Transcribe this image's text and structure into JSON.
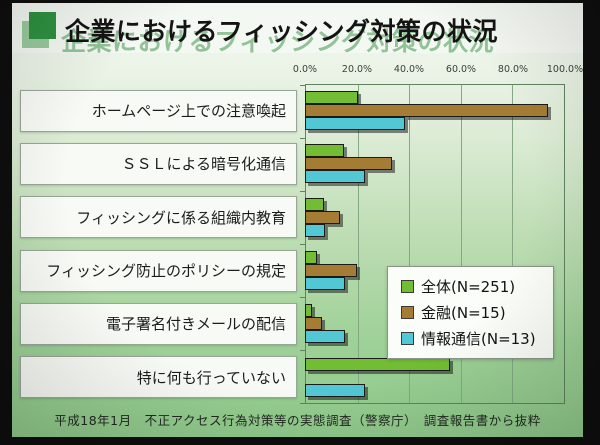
{
  "slide": {
    "title": "企業におけるフィッシング対策の状況",
    "source_note": "平成18年1月　不正アクセス行為対策等の実態調査（警察庁）　調査報告書から抜粋"
  },
  "chart_data": {
    "type": "bar",
    "orientation": "horizontal",
    "title": "企業におけるフィッシング対策の状況",
    "categories": [
      "ホームページ上での注意喚起",
      "ＳＳＬによる暗号化通信",
      "フィッシングに係る組織内教育",
      "フィッシング防止のポリシーの規定",
      "電子署名付きメールの配信",
      "特に何も行っていない"
    ],
    "series": [
      {
        "key": "overall",
        "name": "全体(N=251)",
        "color": "#72bd33",
        "values": [
          20.3,
          14.9,
          7.2,
          4.8,
          2.8,
          55.8
        ]
      },
      {
        "key": "finance",
        "name": "金融(N=15)",
        "color": "#a57c33",
        "values": [
          93.3,
          33.3,
          13.3,
          20.0,
          6.7,
          0.0
        ]
      },
      {
        "key": "info-telecom",
        "name": "情報通信(N=13)",
        "color": "#52c8d4",
        "values": [
          38.5,
          23.1,
          7.7,
          15.4,
          15.4,
          23.1
        ]
      }
    ],
    "x_ticks": [
      "0.0%",
      "20.0%",
      "40.0%",
      "60.0%",
      "80.0%",
      "100.0%"
    ],
    "xlim": [
      0,
      100
    ],
    "grid": true,
    "legend_position": "right-middle"
  }
}
